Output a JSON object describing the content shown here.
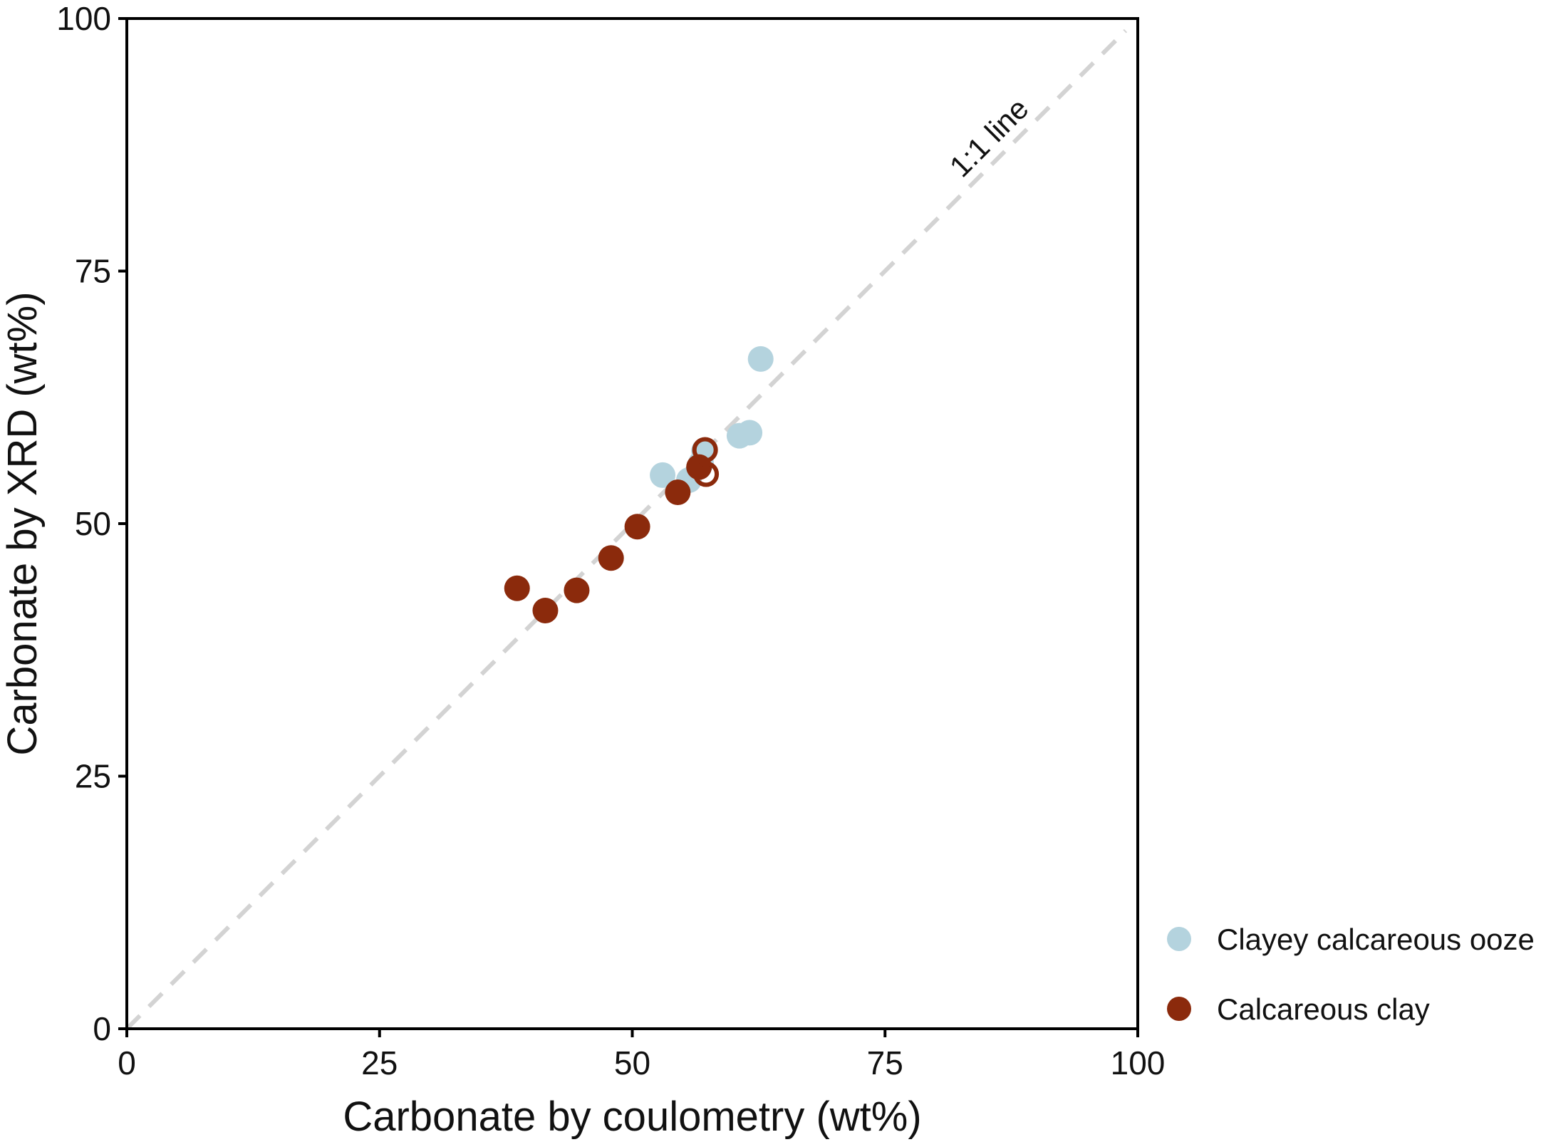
{
  "chart_data": {
    "type": "scatter",
    "title": "",
    "xlabel": "Carbonate by coulometry (wt%)",
    "ylabel": "Carbonate by XRD (wt%)",
    "xlim": [
      0,
      100
    ],
    "ylim": [
      0,
      100
    ],
    "xticks": [
      "0",
      "25",
      "50",
      "75",
      "100"
    ],
    "yticks": [
      "0",
      "25",
      "50",
      "75",
      "100"
    ],
    "grid": false,
    "legend_position": "bottom-right outside",
    "reference_line": {
      "label": "1:1 line",
      "from": [
        0,
        0
      ],
      "to": [
        100,
        100
      ],
      "style": "dashed",
      "color": "#d3d3d3"
    },
    "series": [
      {
        "name": "Clayey calcareous ooze",
        "color": "#b4d3de",
        "points": [
          {
            "x": 53.0,
            "y": 54.8,
            "filled": true
          },
          {
            "x": 55.6,
            "y": 54.3,
            "filled": true
          },
          {
            "x": 56.8,
            "y": 56.0,
            "filled": true
          },
          {
            "x": 57.1,
            "y": 57.2,
            "filled": true
          },
          {
            "x": 60.6,
            "y": 58.7,
            "filled": true
          },
          {
            "x": 61.6,
            "y": 59.0,
            "filled": true
          },
          {
            "x": 62.7,
            "y": 66.3,
            "filled": true
          }
        ]
      },
      {
        "name": "Calcareous clay",
        "color": "#8b2a0c",
        "points": [
          {
            "x": 38.6,
            "y": 43.6,
            "filled": true
          },
          {
            "x": 41.4,
            "y": 41.4,
            "filled": true
          },
          {
            "x": 44.5,
            "y": 43.4,
            "filled": true
          },
          {
            "x": 47.9,
            "y": 46.6,
            "filled": true
          },
          {
            "x": 50.5,
            "y": 49.7,
            "filled": true
          },
          {
            "x": 54.5,
            "y": 53.1,
            "filled": true
          },
          {
            "x": 56.6,
            "y": 55.6,
            "filled": true
          },
          {
            "x": 57.2,
            "y": 57.3,
            "filled": false
          },
          {
            "x": 57.3,
            "y": 54.9,
            "filled": false
          }
        ]
      }
    ]
  }
}
